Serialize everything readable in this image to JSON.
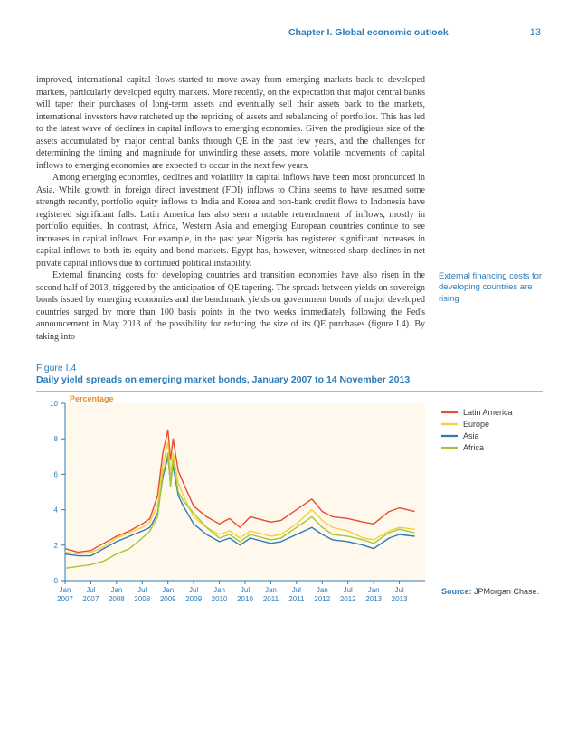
{
  "header": {
    "chapter": "Chapter I. Global economic outlook",
    "page_number": "13"
  },
  "paragraphs": {
    "p1": "improved, international capital flows started to move away from emerging markets back to developed markets, particularly developed equity markets. More recently, on the expectation that major central banks will taper their purchases of long-term assets and eventually sell their assets back to the markets, international investors have ratcheted up the repricing of assets and rebalancing of portfolios. This has led to the latest wave of declines in capital inflows to emerging economies. Given the prodigious size of the assets accumulated by major central banks through QE in the past few years, and the challenges for determining the timing and magnitude for unwinding these assets, more volatile movements of capital inflows to emerging economies are expected to occur in the next few years.",
    "p2": "Among emerging economies, declines and volatility in capital inflows have been most pronounced in Asia. While growth in foreign direct investment (FDI) inflows to China seems to have resumed some strength recently, portfolio equity inflows to India and Korea and non-bank credit flows to Indonesia have registered significant falls. Latin America has also seen a notable retrenchment of inflows, mostly in portfolio equities. In contrast, Africa, Western Asia and emerging European countries continue to see increases in capital inflows. For example, in the past year Nigeria has registered significant increases in capital inflows to both its equity and bond markets. Egypt has, however, witnessed sharp declines in net private capital inflows due to continued political instability.",
    "p3": "External financing costs for developing countries and transition economies have also risen in the second half of 2013, triggered by the anticipation of QE tapering. The spreads between yields on sovereign bonds issued by emerging economies and the benchmark yields on government bonds of major developed countries surged by more than 100 basis points in the two weeks immediately following the Fed's announcement in May 2013 of the possibility for reducing the size of its QE purchases (figure I.4). By taking into"
  },
  "side_note": "External financing costs for developing countries are rising",
  "figure": {
    "label": "Figure I.4",
    "title": "Daily yield spreads on emerging market bonds, January 2007 to 14 November 2013",
    "y_axis_label": "Percentage",
    "ylim": [
      0,
      10
    ],
    "yticks": [
      0,
      2,
      4,
      6,
      8,
      10
    ],
    "x_ticks": [
      "Jan 2007",
      "Jul 2007",
      "Jan 2008",
      "Jul 2008",
      "Jan 2009",
      "Jul 2009",
      "Jan 2010",
      "Jul 2010",
      "Jan 2011",
      "Jul 2011",
      "Jan 2012",
      "Jul 2012",
      "Jan 2013",
      "Jul 2013"
    ],
    "x_tick_positions": [
      0,
      0.5,
      1,
      1.5,
      2,
      2.5,
      3,
      3.5,
      4,
      4.5,
      5,
      5.5,
      6,
      6.5
    ],
    "x_range": 7.0,
    "background_color": "#fef9ec",
    "plot_area_color": "#fef9ec",
    "rule_color": "#2b7bb9",
    "tick_label_color": "#2b7bb9",
    "tick_label_fontsize": 8,
    "line_width": 1.4,
    "series": [
      {
        "name": "Latin America",
        "color": "#e94b35",
        "data": [
          [
            0,
            1.8
          ],
          [
            0.25,
            1.6
          ],
          [
            0.5,
            1.7
          ],
          [
            0.75,
            2.1
          ],
          [
            1,
            2.5
          ],
          [
            1.25,
            2.8
          ],
          [
            1.5,
            3.2
          ],
          [
            1.65,
            3.5
          ],
          [
            1.8,
            4.8
          ],
          [
            1.9,
            7.2
          ],
          [
            2.0,
            8.5
          ],
          [
            2.05,
            6.8
          ],
          [
            2.1,
            8.0
          ],
          [
            2.2,
            6.2
          ],
          [
            2.3,
            5.5
          ],
          [
            2.5,
            4.2
          ],
          [
            2.75,
            3.6
          ],
          [
            3.0,
            3.2
          ],
          [
            3.2,
            3.5
          ],
          [
            3.4,
            3.0
          ],
          [
            3.6,
            3.6
          ],
          [
            4.0,
            3.3
          ],
          [
            4.2,
            3.4
          ],
          [
            4.5,
            4.0
          ],
          [
            4.8,
            4.6
          ],
          [
            5.0,
            3.9
          ],
          [
            5.2,
            3.6
          ],
          [
            5.5,
            3.5
          ],
          [
            5.8,
            3.3
          ],
          [
            6.0,
            3.2
          ],
          [
            6.3,
            3.9
          ],
          [
            6.5,
            4.1
          ],
          [
            6.8,
            3.9
          ]
        ]
      },
      {
        "name": "Europe",
        "color": "#f4d03f",
        "data": [
          [
            0,
            1.6
          ],
          [
            0.25,
            1.5
          ],
          [
            0.5,
            1.6
          ],
          [
            0.75,
            1.9
          ],
          [
            1,
            2.4
          ],
          [
            1.25,
            2.7
          ],
          [
            1.5,
            3.0
          ],
          [
            1.65,
            3.3
          ],
          [
            1.8,
            4.3
          ],
          [
            1.9,
            6.5
          ],
          [
            2.0,
            7.8
          ],
          [
            2.05,
            6.0
          ],
          [
            2.1,
            7.2
          ],
          [
            2.2,
            5.5
          ],
          [
            2.3,
            4.8
          ],
          [
            2.5,
            3.6
          ],
          [
            2.75,
            3.0
          ],
          [
            3.0,
            2.6
          ],
          [
            3.2,
            2.8
          ],
          [
            3.4,
            2.4
          ],
          [
            3.6,
            2.8
          ],
          [
            4.0,
            2.5
          ],
          [
            4.2,
            2.6
          ],
          [
            4.5,
            3.2
          ],
          [
            4.8,
            4.0
          ],
          [
            5.0,
            3.4
          ],
          [
            5.2,
            3.0
          ],
          [
            5.5,
            2.8
          ],
          [
            5.8,
            2.4
          ],
          [
            6.0,
            2.3
          ],
          [
            6.3,
            2.8
          ],
          [
            6.5,
            3.0
          ],
          [
            6.8,
            2.9
          ]
        ]
      },
      {
        "name": "Asia",
        "color": "#2b7bb9",
        "data": [
          [
            0,
            1.5
          ],
          [
            0.25,
            1.4
          ],
          [
            0.5,
            1.4
          ],
          [
            0.75,
            1.8
          ],
          [
            1,
            2.2
          ],
          [
            1.25,
            2.5
          ],
          [
            1.5,
            2.8
          ],
          [
            1.65,
            3.0
          ],
          [
            1.8,
            3.8
          ],
          [
            1.9,
            5.8
          ],
          [
            2.0,
            7.0
          ],
          [
            2.05,
            5.5
          ],
          [
            2.1,
            6.5
          ],
          [
            2.2,
            4.8
          ],
          [
            2.3,
            4.2
          ],
          [
            2.5,
            3.2
          ],
          [
            2.75,
            2.6
          ],
          [
            3.0,
            2.2
          ],
          [
            3.2,
            2.4
          ],
          [
            3.4,
            2.0
          ],
          [
            3.6,
            2.4
          ],
          [
            4.0,
            2.1
          ],
          [
            4.2,
            2.2
          ],
          [
            4.5,
            2.6
          ],
          [
            4.8,
            3.0
          ],
          [
            5.0,
            2.6
          ],
          [
            5.2,
            2.3
          ],
          [
            5.5,
            2.2
          ],
          [
            5.8,
            2.0
          ],
          [
            6.0,
            1.8
          ],
          [
            6.3,
            2.4
          ],
          [
            6.5,
            2.6
          ],
          [
            6.8,
            2.5
          ]
        ]
      },
      {
        "name": "Africa",
        "color": "#a4c639",
        "data": [
          [
            0,
            0.7
          ],
          [
            0.25,
            0.8
          ],
          [
            0.5,
            0.9
          ],
          [
            0.75,
            1.1
          ],
          [
            1,
            1.5
          ],
          [
            1.25,
            1.8
          ],
          [
            1.5,
            2.4
          ],
          [
            1.65,
            2.8
          ],
          [
            1.8,
            3.6
          ],
          [
            1.9,
            6.0
          ],
          [
            2.0,
            7.2
          ],
          [
            2.05,
            5.3
          ],
          [
            2.1,
            6.8
          ],
          [
            2.2,
            5.0
          ],
          [
            2.3,
            4.5
          ],
          [
            2.5,
            3.8
          ],
          [
            2.75,
            3.0
          ],
          [
            3.0,
            2.4
          ],
          [
            3.2,
            2.6
          ],
          [
            3.4,
            2.2
          ],
          [
            3.6,
            2.6
          ],
          [
            4.0,
            2.3
          ],
          [
            4.2,
            2.4
          ],
          [
            4.5,
            3.0
          ],
          [
            4.8,
            3.6
          ],
          [
            5.0,
            3.0
          ],
          [
            5.2,
            2.6
          ],
          [
            5.5,
            2.5
          ],
          [
            5.8,
            2.3
          ],
          [
            6.0,
            2.1
          ],
          [
            6.3,
            2.7
          ],
          [
            6.5,
            2.9
          ],
          [
            6.8,
            2.7
          ]
        ]
      }
    ],
    "legend": {
      "items": [
        "Latin America",
        "Europe",
        "Asia",
        "Africa"
      ]
    },
    "source_label": "Source:",
    "source_value": "JPMorgan Chase."
  }
}
